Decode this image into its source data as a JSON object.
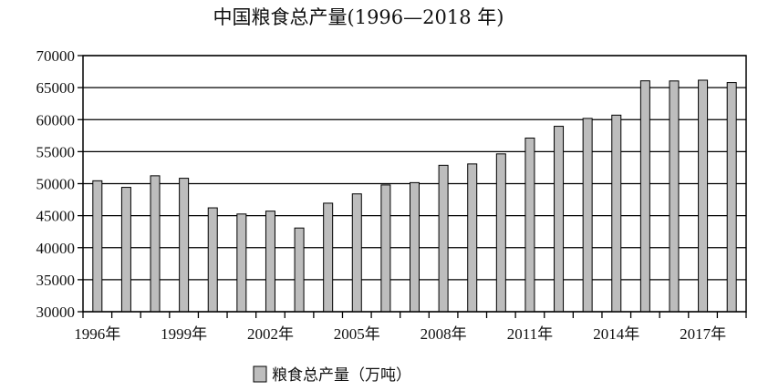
{
  "chart_data": {
    "type": "bar",
    "title": "中国粮食总产量(1996—2018 年)",
    "xlabel": "",
    "ylabel": "",
    "ylim": [
      30000,
      70000
    ],
    "yticks": [
      30000,
      35000,
      40000,
      45000,
      50000,
      55000,
      60000,
      65000,
      70000
    ],
    "grid": true,
    "legend_position": "bottom",
    "x": [
      1996,
      1997,
      1998,
      1999,
      2000,
      2001,
      2002,
      2003,
      2004,
      2005,
      2006,
      2007,
      2008,
      2009,
      2010,
      2011,
      2012,
      2013,
      2014,
      2015,
      2016,
      2017,
      2018
    ],
    "xtick_labels": [
      "1996年",
      "1999年",
      "2002年",
      "2005年",
      "2008年",
      "2011年",
      "2014年",
      "2017年"
    ],
    "series": [
      {
        "name": "粮食总产量（万吨）",
        "color": "#bdbdbd",
        "values": [
          50450,
          49420,
          51230,
          50840,
          46220,
          45260,
          45710,
          43070,
          46950,
          48400,
          49800,
          50160,
          52870,
          53080,
          54650,
          57120,
          58960,
          60190,
          60700,
          66060,
          66040,
          66160,
          65790
        ]
      }
    ]
  }
}
